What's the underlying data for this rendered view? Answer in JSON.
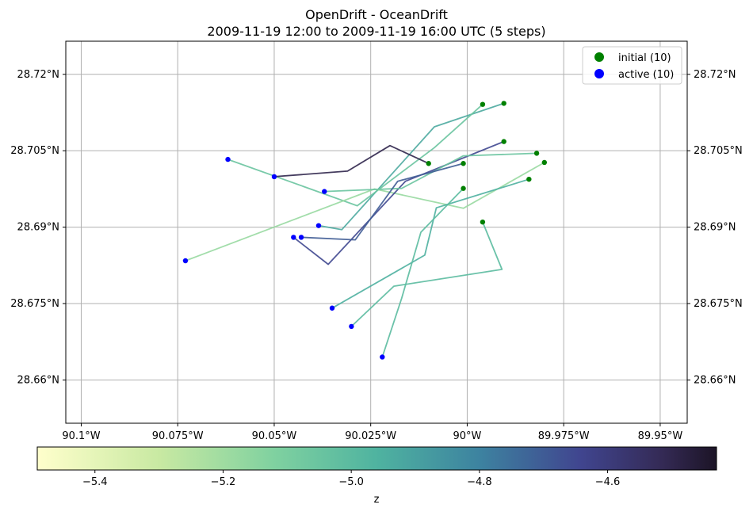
{
  "chart_data": {
    "type": "line",
    "title": "OpenDrift - OceanDrift",
    "subtitle": "2009-11-19 12:00 to 2009-11-19 16:00 UTC (5 steps)",
    "xlim": [
      -90.104,
      -89.943
    ],
    "ylim": [
      28.6515,
      28.7265
    ],
    "x_ticks": [
      {
        "value": -90.1,
        "label": "90.1°W"
      },
      {
        "value": -90.075,
        "label": "90.075°W"
      },
      {
        "value": -90.05,
        "label": "90.05°W"
      },
      {
        "value": -90.025,
        "label": "90.025°W"
      },
      {
        "value": -90.0,
        "label": "90°W"
      },
      {
        "value": -89.975,
        "label": "89.975°W"
      },
      {
        "value": -89.95,
        "label": "89.95°W"
      }
    ],
    "y_ticks": [
      {
        "value": 28.66,
        "label": "28.66°N"
      },
      {
        "value": 28.675,
        "label": "28.675°N"
      },
      {
        "value": 28.69,
        "label": "28.69°N"
      },
      {
        "value": 28.705,
        "label": "28.705°N"
      },
      {
        "value": 28.72,
        "label": "28.72°N"
      }
    ],
    "grid": true,
    "legend": {
      "position": "top-right",
      "items": [
        {
          "label": "initial (10)",
          "color": "#008000"
        },
        {
          "label": "active (10)",
          "color": "#0000ff"
        }
      ]
    },
    "colorbar": {
      "label": "z",
      "range": [
        -5.49,
        -4.43
      ],
      "ticks": [
        {
          "value": -5.4,
          "label": "−5.4"
        },
        {
          "value": -5.2,
          "label": "−5.2"
        },
        {
          "value": -5.0,
          "label": "−5.0"
        },
        {
          "value": -4.8,
          "label": "−4.8"
        },
        {
          "value": -4.6,
          "label": "−4.6"
        }
      ]
    },
    "trajectories": [
      {
        "z": -4.93,
        "lon": [
          -89.9905,
          -90.0085,
          -90.0325,
          -90.0385
        ],
        "lat": [
          28.7143,
          28.7097,
          28.6895,
          28.6903
        ]
      },
      {
        "z": -5.05,
        "lon": [
          -89.996,
          -90.0085,
          -90.0285,
          -90.062
        ],
        "lat": [
          28.7141,
          28.7056,
          28.6942,
          28.7033
        ]
      },
      {
        "z": -5.18,
        "lon": [
          -89.98,
          -90.001,
          -90.024,
          -90.073
        ],
        "lat": [
          28.7027,
          28.6937,
          28.6975,
          28.6834
        ]
      },
      {
        "z": -4.95,
        "lon": [
          -89.984,
          -90.008,
          -90.011,
          -90.035
        ],
        "lat": [
          28.6994,
          28.6938,
          28.6845,
          28.6741
        ]
      },
      {
        "z": -5.0,
        "lon": [
          -89.996,
          -89.991,
          -90.019,
          -90.03
        ],
        "lat": [
          28.691,
          28.6817,
          28.6784,
          28.6705
        ]
      },
      {
        "z": -4.65,
        "lon": [
          -89.9905,
          -90.016,
          -90.036,
          -90.045
        ],
        "lat": [
          28.7068,
          28.699,
          28.6827,
          28.688
        ]
      },
      {
        "z": -4.5,
        "lon": [
          -90.01,
          -90.02,
          -90.031,
          -90.05
        ],
        "lat": [
          28.7025,
          28.706,
          28.701,
          28.6999
        ]
      },
      {
        "z": -5.05,
        "lon": [
          -89.982,
          -90.001,
          -90.017,
          -90.037
        ],
        "lat": [
          28.7045,
          28.704,
          28.6976,
          28.697
        ]
      },
      {
        "z": -4.7,
        "lon": [
          -90.001,
          -90.018,
          -90.029,
          -90.043
        ],
        "lat": [
          28.7025,
          28.699,
          28.6875,
          28.688
        ]
      },
      {
        "z": -5.0,
        "lon": [
          -90.001,
          -90.012,
          -90.017,
          -90.022
        ],
        "lat": [
          28.6976,
          28.689,
          28.676,
          28.6645
        ]
      }
    ],
    "initial_points": [
      {
        "lon": -89.9905,
        "lat": 28.7143
      },
      {
        "lon": -89.996,
        "lat": 28.7141
      },
      {
        "lon": -89.9905,
        "lat": 28.7068
      },
      {
        "lon": -89.982,
        "lat": 28.7045
      },
      {
        "lon": -90.01,
        "lat": 28.7025
      },
      {
        "lon": -90.001,
        "lat": 28.7025
      },
      {
        "lon": -89.984,
        "lat": 28.6994
      },
      {
        "lon": -89.98,
        "lat": 28.7027
      },
      {
        "lon": -90.001,
        "lat": 28.6976
      },
      {
        "lon": -89.996,
        "lat": 28.691
      }
    ],
    "active_points": [
      {
        "lon": -90.062,
        "lat": 28.7033
      },
      {
        "lon": -90.05,
        "lat": 28.6999
      },
      {
        "lon": -90.037,
        "lat": 28.697
      },
      {
        "lon": -90.0385,
        "lat": 28.6903
      },
      {
        "lon": -90.045,
        "lat": 28.688
      },
      {
        "lon": -90.043,
        "lat": 28.688
      },
      {
        "lon": -90.073,
        "lat": 28.6834
      },
      {
        "lon": -90.035,
        "lat": 28.6741
      },
      {
        "lon": -90.03,
        "lat": 28.6705
      },
      {
        "lon": -90.022,
        "lat": 28.6645
      }
    ]
  }
}
